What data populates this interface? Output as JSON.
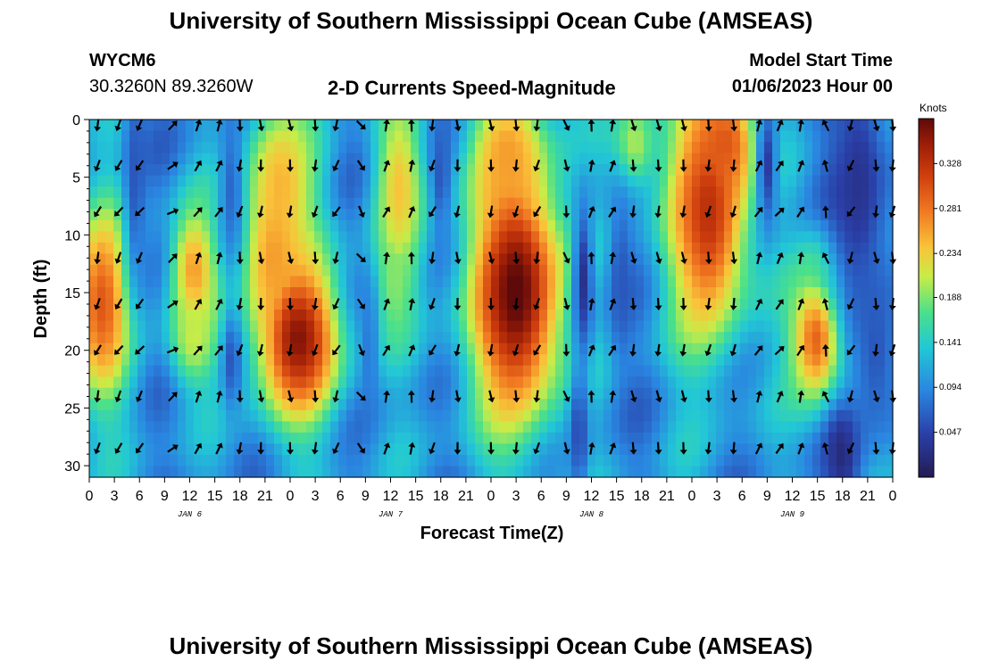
{
  "header": {
    "title": "University of Southern Mississippi Ocean Cube (AMSEAS)",
    "station": "WYCM6",
    "coords": "30.3260N  89.3260W",
    "subtitle": "2-D Currents Speed-Magnitude",
    "model_start_label": "Model Start Time",
    "model_start_value": "01/06/2023 Hour 00"
  },
  "footer": {
    "title": "University of Southern Mississippi Ocean Cube (AMSEAS)"
  },
  "chart_data": {
    "type": "heatmap",
    "title": "2-D Currents Speed-Magnitude",
    "xlabel": "Forecast Time(Z)",
    "ylabel": "Depth (ft)",
    "x_ticks": [
      "0",
      "3",
      "6",
      "9",
      "12",
      "15",
      "18",
      "21",
      "0",
      "3",
      "6",
      "9",
      "12",
      "15",
      "18",
      "21",
      "0",
      "3",
      "6",
      "9",
      "12",
      "15",
      "18",
      "21",
      "0",
      "3",
      "6",
      "9",
      "12",
      "15",
      "18",
      "21",
      "0"
    ],
    "day_labels": [
      "JAN 6",
      "JAN 7",
      "JAN 8",
      "JAN 9"
    ],
    "xlim_hours": [
      0,
      96
    ],
    "ylim_ft": [
      31,
      0
    ],
    "y_ticks": [
      0,
      5,
      10,
      15,
      20,
      25,
      30
    ],
    "colorbar": {
      "unit": "Knots",
      "ticks": [
        "0.328",
        "0.281",
        "0.234",
        "0.188",
        "0.141",
        "0.094",
        "0.047"
      ],
      "range": [
        0,
        0.375
      ]
    },
    "speed_blobs": [
      {
        "t": 1.5,
        "d": 16,
        "st": 2.5,
        "sd": 6,
        "v": 0.3
      },
      {
        "t": 12.5,
        "d": 13,
        "st": 2.0,
        "sd": 4,
        "v": 0.26
      },
      {
        "t": 12.5,
        "d": 19,
        "st": 2.0,
        "sd": 3,
        "v": 0.21
      },
      {
        "t": 25,
        "d": 19,
        "st": 3.5,
        "sd": 5,
        "v": 0.36
      },
      {
        "t": 23,
        "d": 5,
        "st": 3.0,
        "sd": 5,
        "v": 0.24
      },
      {
        "t": 22,
        "d": 12,
        "st": 2.5,
        "sd": 5,
        "v": 0.26
      },
      {
        "t": 37,
        "d": 6,
        "st": 2.0,
        "sd": 6,
        "v": 0.24
      },
      {
        "t": 36.5,
        "d": 14,
        "st": 1.5,
        "sd": 4,
        "v": 0.19
      },
      {
        "t": 51,
        "d": 15,
        "st": 4.0,
        "sd": 8,
        "v": 0.38
      },
      {
        "t": 50,
        "d": 3,
        "st": 3.0,
        "sd": 4,
        "v": 0.26
      },
      {
        "t": 65,
        "d": 2,
        "st": 2.0,
        "sd": 3,
        "v": 0.2
      },
      {
        "t": 74,
        "d": 8,
        "st": 3.5,
        "sd": 8,
        "v": 0.33
      },
      {
        "t": 76,
        "d": 2,
        "st": 2.5,
        "sd": 3,
        "v": 0.3
      },
      {
        "t": 87,
        "d": 19,
        "st": 2.3,
        "sd": 4,
        "v": 0.3
      },
      {
        "t": 87,
        "d": 14,
        "st": 1.8,
        "sd": 3,
        "v": 0.18
      }
    ],
    "calm_zones": [
      {
        "t": 5.5,
        "d": 5,
        "st": 1.0,
        "sd": 7,
        "v": 0.06
      },
      {
        "t": 17,
        "d": 6,
        "st": 1.0,
        "sd": 5,
        "v": 0.07
      },
      {
        "t": 17,
        "d": 21,
        "st": 0.8,
        "sd": 3,
        "v": 0.06
      },
      {
        "t": 33.5,
        "d": 20,
        "st": 0.7,
        "sd": 4,
        "v": 0.08
      },
      {
        "t": 42,
        "d": 5,
        "st": 0.8,
        "sd": 3,
        "v": 0.06
      },
      {
        "t": 59,
        "d": 14,
        "st": 0.9,
        "sd": 5,
        "v": 0.03
      },
      {
        "t": 58.5,
        "d": 27,
        "st": 0.8,
        "sd": 4,
        "v": 0.05
      },
      {
        "t": 63.5,
        "d": 14,
        "st": 1.0,
        "sd": 5,
        "v": 0.06
      },
      {
        "t": 81,
        "d": 4,
        "st": 0.9,
        "sd": 4,
        "v": 0.04
      },
      {
        "t": 92,
        "d": 6,
        "st": 2.5,
        "sd": 8,
        "v": 0.03
      },
      {
        "t": 90,
        "d": 29,
        "st": 1.5,
        "sd": 3,
        "v": 0.02
      },
      {
        "t": 94,
        "d": 20,
        "st": 2.0,
        "sd": 6,
        "v": 0.06
      }
    ],
    "vector_hours": [
      1,
      3.5,
      6,
      10,
      13,
      15.5,
      18,
      20.5,
      24,
      27,
      29.5,
      32.5,
      35.5,
      38.5,
      41,
      44,
      48,
      51,
      53.5,
      57,
      60,
      62.5,
      65,
      68,
      71,
      74,
      77,
      80,
      82.5,
      85,
      88,
      91,
      94,
      96
    ],
    "vector_depths_ft": [
      0.5,
      4,
      8,
      12,
      16,
      20,
      24,
      28.5
    ],
    "vector_angles_by_hour": [
      200,
      205,
      215,
      50,
      30,
      20,
      190,
      175,
      178,
      182,
      205,
      140,
      20,
      5,
      200,
      175,
      178,
      180,
      200,
      160,
      10,
      15,
      175,
      170,
      178,
      182,
      185,
      20,
      35,
      15,
      345,
      200,
      175,
      180
    ]
  }
}
